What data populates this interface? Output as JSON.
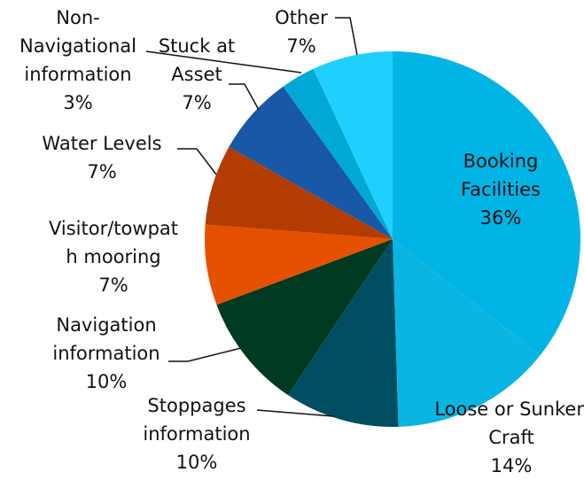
{
  "chart_data": {
    "type": "pie",
    "categories": [
      "Booking Facilities",
      "Loose or Sunken Craft",
      "Stoppages information",
      "Navigation information",
      "Visitor/towpath mooring",
      "Water Levels",
      "Stuck at Asset",
      "Non-Navigational information",
      "Other"
    ],
    "values": [
      36,
      14,
      10,
      10,
      7,
      7,
      7,
      3,
      7
    ],
    "value_labels": [
      "36%",
      "14%",
      "10%",
      "10%",
      "7%",
      "7%",
      "7%",
      "3%",
      "7%"
    ],
    "colors": [
      "#00b4e6",
      "#0bb5e2",
      "#004e62",
      "#003a20",
      "#e65100",
      "#b33d00",
      "#1957a7",
      "#00a8d3",
      "#1fd0ff"
    ]
  }
}
